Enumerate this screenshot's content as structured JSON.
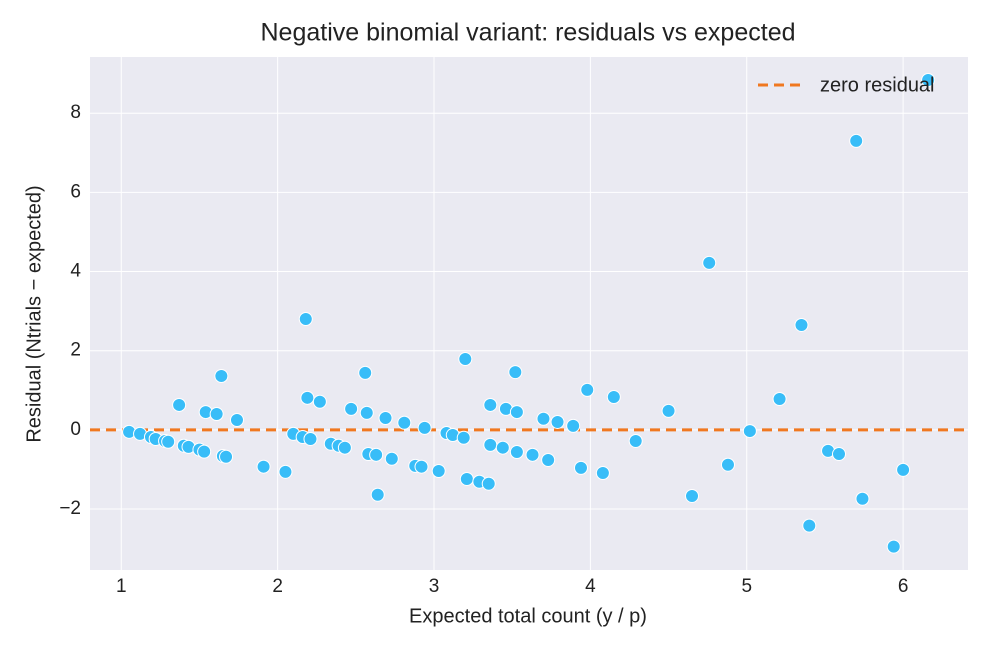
{
  "chart_data": {
    "type": "scatter",
    "title": "Negative binomial variant: residuals vs expected",
    "x_label": "Expected total count (y / p)",
    "y_label": "Residual (Ntrials − expected)",
    "x": [
      1.05,
      1.12,
      1.19,
      1.22,
      1.28,
      1.3,
      1.37,
      1.4,
      1.43,
      1.5,
      1.53,
      1.54,
      1.61,
      1.64,
      1.65,
      1.67,
      1.74,
      1.91,
      2.05,
      2.1,
      2.16,
      2.18,
      2.19,
      2.21,
      2.27,
      2.34,
      2.39,
      2.43,
      2.47,
      2.56,
      2.57,
      2.58,
      2.63,
      2.64,
      2.69,
      2.73,
      2.81,
      2.88,
      2.92,
      2.94,
      3.03,
      3.08,
      3.12,
      3.19,
      3.2,
      3.21,
      3.29,
      3.35,
      3.36,
      3.36,
      3.44,
      3.46,
      3.52,
      3.53,
      3.53,
      3.63,
      3.7,
      3.73,
      3.79,
      3.89,
      3.94,
      3.98,
      4.08,
      4.15,
      4.29,
      4.5,
      4.65,
      4.76,
      4.88,
      5.02,
      5.21,
      5.35,
      5.4,
      5.52,
      5.59,
      5.7,
      5.74,
      5.94,
      6.0,
      6.16
    ],
    "values": [
      -0.05,
      -0.1,
      -0.18,
      -0.23,
      -0.28,
      -0.3,
      0.63,
      -0.4,
      -0.43,
      -0.5,
      -0.55,
      0.45,
      0.4,
      1.36,
      -0.66,
      -0.68,
      0.25,
      -0.93,
      -1.06,
      -0.1,
      -0.18,
      2.8,
      0.81,
      -0.23,
      0.71,
      -0.35,
      -0.4,
      -0.45,
      0.53,
      1.44,
      0.43,
      -0.61,
      -0.63,
      -1.64,
      0.3,
      -0.73,
      0.18,
      -0.91,
      -0.93,
      0.05,
      -1.04,
      -0.08,
      -0.13,
      -0.2,
      1.79,
      -1.24,
      -1.31,
      -1.36,
      0.63,
      -0.38,
      -0.45,
      0.53,
      1.46,
      0.45,
      -0.56,
      -0.63,
      0.28,
      -0.76,
      0.2,
      0.1,
      -0.96,
      1.01,
      -1.09,
      0.83,
      -0.28,
      0.48,
      -1.67,
      4.22,
      -0.88,
      -0.03,
      0.78,
      2.65,
      -2.42,
      -0.53,
      -0.61,
      7.3,
      -1.74,
      -2.95,
      -1.01,
      8.84
    ],
    "color": "#38bdf8",
    "hline": {
      "y": 0,
      "label": "zero residual",
      "color": "#f07820"
    },
    "xlim": [
      0.8,
      6.415
    ],
    "ylim": [
      -3.54,
      9.42
    ],
    "xticks": [
      1,
      2,
      3,
      4,
      5,
      6
    ],
    "yticks": [
      {
        "value": -2,
        "label": "−2"
      },
      0,
      2,
      4,
      6,
      8
    ],
    "grid": true,
    "legend_position": "upper right"
  }
}
